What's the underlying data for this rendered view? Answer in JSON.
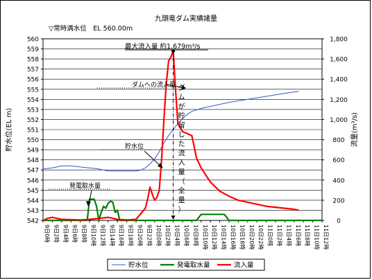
{
  "chart_data": {
    "type": "line",
    "title": "九頭竜ダム実績諸量",
    "normal_water_level_label": "▽常時満水位　EL 560.00m",
    "ylabel_left": "貯水位(EL m)",
    "ylabel_right": "流量(m³/s)",
    "y_left_range": [
      542,
      560
    ],
    "y_left_ticks": [
      "542",
      "543",
      "544",
      "545",
      "546",
      "547",
      "548",
      "549",
      "550",
      "551",
      "552",
      "553",
      "554",
      "555",
      "556",
      "557",
      "558",
      "559",
      "560"
    ],
    "y_right_range": [
      0,
      1800
    ],
    "y_right_ticks": [
      "0",
      "200",
      "400",
      "600",
      "800",
      "1,000",
      "1,200",
      "1,400",
      "1,600",
      "1,800"
    ],
    "x_range_hours": [
      0,
      60
    ],
    "x_ticks": [
      "9日 0時",
      "9日 2時",
      "9日 4時",
      "9日 6時",
      "9日 8時",
      "9日 10時",
      "9日 12時",
      "9日 14時",
      "9日 16時",
      "9日 18時",
      "9日 20時",
      "9日 22時",
      "10日 0時",
      "10日 2時",
      "10日 4時",
      "10日 6時",
      "10日 8時",
      "10日 10時",
      "10日 12時",
      "10日 14時",
      "10日 16時",
      "10日 18時",
      "10日 20時",
      "10日 22時",
      "11日 0時",
      "11日 2時",
      "11日 4時",
      "11日 6時",
      "11日 8時",
      "11日 10時",
      "11日 12時"
    ],
    "annotations": {
      "peak": "最大流入量 約1,679m³/s",
      "inflow_to_dam": "ダムへの流入量",
      "water_level": "貯水位",
      "power_intake": "発電取水量",
      "stored_all": "ダムが貯留した流入量（全量）"
    },
    "series": [
      {
        "name": "貯水位",
        "axis": "left",
        "color": "#3355cc",
        "x": [
          0,
          2,
          4,
          5,
          6,
          8,
          10,
          12,
          14,
          16,
          18,
          20,
          21,
          22,
          23,
          24,
          25,
          26,
          27,
          28,
          29,
          30,
          31,
          32,
          34,
          36,
          38,
          40,
          44,
          48,
          52,
          55
        ],
        "y": [
          547.1,
          547.2,
          547.4,
          547.4,
          547.4,
          547.3,
          547.2,
          547.1,
          546.9,
          546.9,
          546.9,
          546.9,
          547.0,
          547.2,
          547.6,
          548.1,
          548.8,
          549.7,
          550.4,
          551.0,
          551.6,
          552.1,
          552.5,
          552.8,
          553.1,
          553.3,
          553.5,
          553.7,
          554.0,
          554.3,
          554.6,
          554.8
        ]
      },
      {
        "name": "発電取水量",
        "axis": "right",
        "color": "#008000",
        "x": [
          0,
          9.5,
          10,
          11,
          11.5,
          12,
          12.5,
          13,
          13.5,
          14,
          14.5,
          15,
          15.5,
          16,
          16.5,
          17,
          17.5,
          18,
          33,
          34,
          39,
          40,
          60
        ],
        "y": [
          0,
          0,
          210,
          210,
          140,
          0,
          80,
          140,
          120,
          170,
          190,
          180,
          80,
          100,
          0,
          0,
          0,
          0,
          0,
          60,
          60,
          0,
          0
        ]
      },
      {
        "name": "流入量",
        "axis": "right",
        "color": "#ff0000",
        "x": [
          0,
          1,
          2,
          3,
          4,
          8,
          10,
          12,
          14,
          16,
          18,
          20,
          22,
          22.5,
          23,
          23.5,
          24,
          24.5,
          25,
          25.5,
          26,
          26.5,
          27,
          27.5,
          28,
          28.5,
          29,
          30,
          31,
          32,
          33,
          34,
          36,
          38,
          40,
          42,
          44,
          46,
          48,
          50,
          52,
          54,
          55
        ],
        "y": [
          0,
          20,
          30,
          20,
          10,
          5,
          10,
          20,
          30,
          10,
          5,
          10,
          120,
          210,
          330,
          260,
          200,
          230,
          300,
          600,
          1000,
          1350,
          1580,
          1620,
          1679,
          1300,
          960,
          880,
          860,
          840,
          620,
          520,
          380,
          290,
          240,
          200,
          180,
          160,
          140,
          130,
          120,
          110,
          100
        ]
      }
    ],
    "legend": {
      "placement": "bottom",
      "items": [
        {
          "name": "貯水位",
          "color": "#3355cc"
        },
        {
          "name": "発電取水量",
          "color": "#008000"
        },
        {
          "name": "流入量",
          "color": "#ff0000"
        }
      ]
    }
  }
}
